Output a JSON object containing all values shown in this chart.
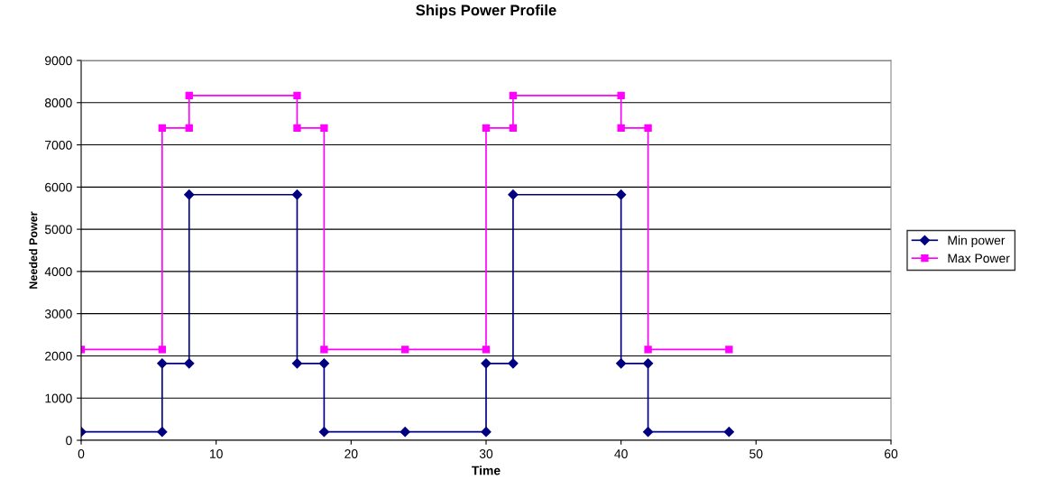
{
  "chart_data": {
    "type": "line",
    "title": "Ships Power Profile",
    "xlabel": "Time",
    "ylabel": "Needed Power",
    "xlim": [
      0,
      60
    ],
    "xticks": [
      0,
      10,
      20,
      30,
      40,
      50,
      60
    ],
    "ylim": [
      0,
      9000
    ],
    "yticks": [
      0,
      1000,
      2000,
      3000,
      4000,
      5000,
      6000,
      7000,
      8000,
      9000
    ],
    "grid": "y",
    "legend": "right",
    "line_style": "solid",
    "series": [
      {
        "name": "Min power",
        "color": "#000080",
        "marker": "diamond",
        "x": [
          0,
          6,
          6,
          8,
          8,
          16,
          16,
          18,
          18,
          24,
          30,
          30,
          32,
          32,
          40,
          40,
          42,
          42,
          48
        ],
        "values": [
          200,
          200,
          1820,
          1820,
          5820,
          5820,
          1820,
          1820,
          200,
          200,
          200,
          1820,
          1820,
          5820,
          5820,
          1820,
          1820,
          200,
          200
        ]
      },
      {
        "name": "Max Power",
        "color": "#ff00ff",
        "marker": "square",
        "x": [
          0,
          6,
          6,
          8,
          8,
          16,
          16,
          18,
          18,
          24,
          30,
          30,
          32,
          32,
          40,
          40,
          42,
          42,
          48
        ],
        "values": [
          2150,
          2150,
          7400,
          7400,
          8170,
          8170,
          7400,
          7400,
          2150,
          2150,
          2150,
          7400,
          7400,
          8170,
          8170,
          7400,
          7400,
          2150,
          2150
        ]
      }
    ]
  }
}
